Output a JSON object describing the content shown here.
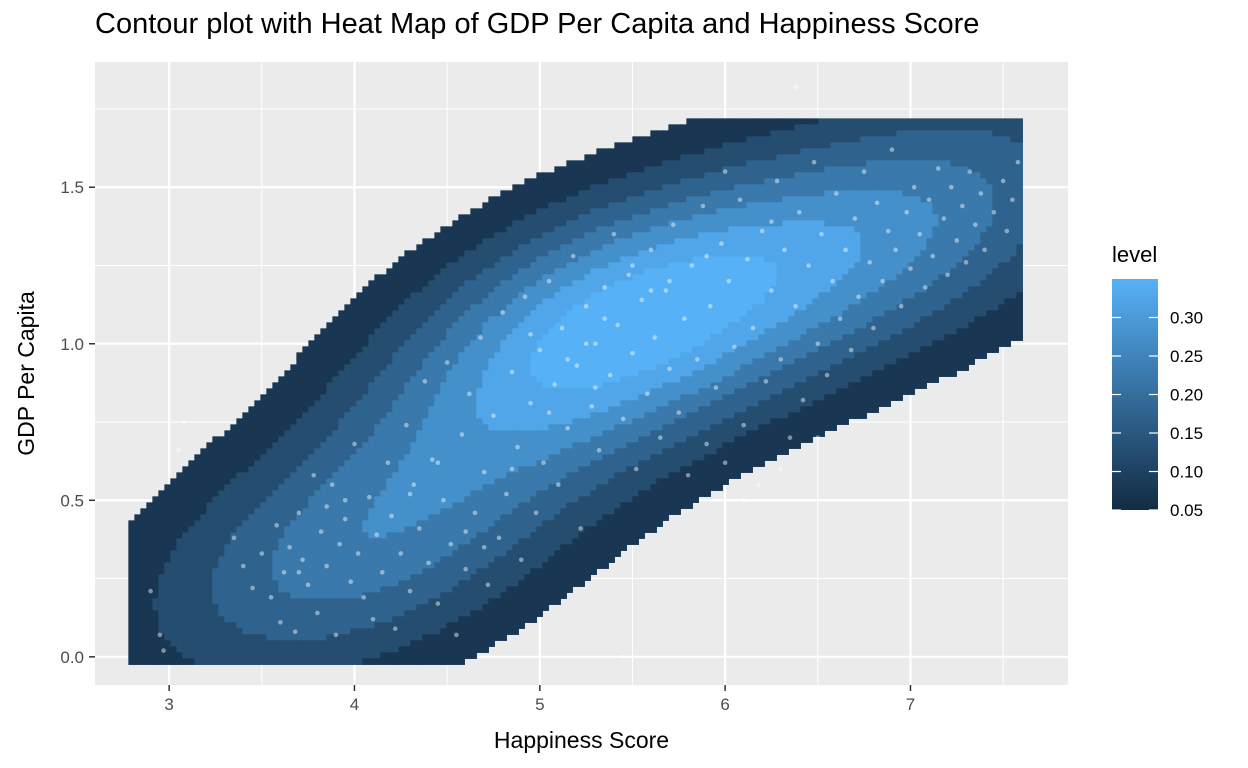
{
  "chart_data": {
    "type": "heatmap",
    "title": "Contour plot with Heat Map of GDP Per Capita and Happiness Score",
    "xlabel": "Happiness Score",
    "ylabel": "GDP Per Capita",
    "xlim": [
      2.6,
      7.85
    ],
    "ylim": [
      -0.09,
      1.9
    ],
    "x_ticks": [
      3,
      4,
      5,
      6,
      7
    ],
    "y_ticks": [
      0.0,
      0.5,
      1.0,
      1.5
    ],
    "x_tick_labels": [
      "3",
      "4",
      "5",
      "6",
      "7"
    ],
    "y_tick_labels": [
      "0.0",
      "0.5",
      "1.0",
      "1.5"
    ],
    "grid": true,
    "legend": {
      "title": "level",
      "placement": "right",
      "range": [
        0.05,
        0.35
      ],
      "ticks": [
        0.05,
        0.1,
        0.15,
        0.2,
        0.25,
        0.3
      ],
      "tick_labels": [
        "0.05",
        "0.10",
        "0.15",
        "0.20",
        "0.25",
        "0.30"
      ],
      "color_low": "#132B43",
      "color_high": "#56B1F7"
    },
    "density_peaks": [
      {
        "x": 5.4,
        "y": 1.05,
        "level": 0.35
      },
      {
        "x": 4.0,
        "y": 0.34,
        "level": 0.22
      },
      {
        "x": 7.0,
        "y": 1.38,
        "level": 0.21
      }
    ],
    "contour_levels": [
      0.05,
      0.1,
      0.15,
      0.2,
      0.25,
      0.3,
      0.35
    ],
    "points": [
      [
        2.9,
        0.21
      ],
      [
        2.95,
        0.07
      ],
      [
        2.97,
        0.02
      ],
      [
        3.05,
        0.66
      ],
      [
        3.08,
        0.75
      ],
      [
        3.35,
        0.38
      ],
      [
        3.4,
        0.29
      ],
      [
        3.45,
        0.22
      ],
      [
        3.5,
        0.33
      ],
      [
        3.55,
        0.19
      ],
      [
        3.58,
        0.42
      ],
      [
        3.6,
        0.11
      ],
      [
        3.62,
        0.27
      ],
      [
        3.65,
        0.35
      ],
      [
        3.68,
        0.08
      ],
      [
        3.7,
        0.46
      ],
      [
        3.72,
        0.31
      ],
      [
        3.75,
        0.23
      ],
      [
        3.78,
        0.58
      ],
      [
        3.8,
        0.14
      ],
      [
        3.82,
        0.4
      ],
      [
        3.85,
        0.29
      ],
      [
        3.88,
        0.55
      ],
      [
        3.9,
        0.07
      ],
      [
        3.92,
        0.36
      ],
      [
        3.95,
        0.44
      ],
      [
        3.98,
        0.24
      ],
      [
        4.0,
        0.68
      ],
      [
        4.02,
        0.33
      ],
      [
        4.05,
        0.19
      ],
      [
        4.08,
        0.51
      ],
      [
        4.1,
        0.12
      ],
      [
        4.12,
        0.39
      ],
      [
        4.15,
        0.27
      ],
      [
        4.18,
        0.62
      ],
      [
        4.2,
        0.45
      ],
      [
        4.22,
        0.09
      ],
      [
        4.25,
        0.33
      ],
      [
        4.28,
        0.74
      ],
      [
        4.3,
        0.21
      ],
      [
        4.32,
        0.55
      ],
      [
        4.35,
        0.41
      ],
      [
        4.38,
        0.88
      ],
      [
        4.4,
        0.3
      ],
      [
        4.42,
        0.63
      ],
      [
        4.45,
        0.17
      ],
      [
        4.48,
        0.5
      ],
      [
        4.5,
        0.94
      ],
      [
        4.52,
        0.36
      ],
      [
        4.55,
        0.07
      ],
      [
        4.58,
        0.71
      ],
      [
        4.6,
        0.28
      ],
      [
        4.62,
        0.84
      ],
      [
        4.65,
        0.46
      ],
      [
        4.68,
        1.02
      ],
      [
        4.7,
        0.59
      ],
      [
        4.72,
        0.23
      ],
      [
        4.75,
        0.77
      ],
      [
        4.78,
        0.38
      ],
      [
        4.8,
        1.1
      ],
      [
        4.82,
        0.52
      ],
      [
        4.85,
        0.91
      ],
      [
        4.88,
        0.67
      ],
      [
        4.9,
        0.31
      ],
      [
        4.92,
        1.15
      ],
      [
        4.95,
        0.81
      ],
      [
        4.98,
        0.46
      ],
      [
        5.0,
        0.98
      ],
      [
        5.02,
        0.62
      ],
      [
        5.05,
        1.2
      ],
      [
        5.08,
        0.87
      ],
      [
        5.1,
        0.55
      ],
      [
        5.12,
        1.05
      ],
      [
        5.15,
        0.73
      ],
      [
        5.18,
        1.28
      ],
      [
        5.2,
        0.93
      ],
      [
        5.22,
        0.41
      ],
      [
        5.25,
        1.12
      ],
      [
        5.28,
        0.8
      ],
      [
        5.3,
        1.0
      ],
      [
        5.32,
        0.66
      ],
      [
        5.35,
        1.18
      ],
      [
        5.38,
        0.9
      ],
      [
        5.4,
        1.35
      ],
      [
        5.42,
        1.06
      ],
      [
        5.45,
        0.76
      ],
      [
        5.48,
        1.22
      ],
      [
        5.5,
        0.97
      ],
      [
        5.52,
        0.6
      ],
      [
        5.55,
        1.14
      ],
      [
        5.58,
        0.84
      ],
      [
        5.6,
        1.3
      ],
      [
        5.62,
        1.02
      ],
      [
        5.65,
        0.7
      ],
      [
        5.68,
        1.17
      ],
      [
        5.7,
        0.92
      ],
      [
        5.72,
        1.38
      ],
      [
        5.75,
        0.78
      ],
      [
        5.78,
        1.08
      ],
      [
        5.8,
        0.58
      ],
      [
        5.82,
        1.25
      ],
      [
        5.85,
        0.95
      ],
      [
        5.88,
        1.44
      ],
      [
        5.9,
        0.68
      ],
      [
        5.92,
        1.12
      ],
      [
        5.95,
        0.86
      ],
      [
        5.98,
        1.32
      ],
      [
        6.0,
        0.62
      ],
      [
        6.02,
        1.2
      ],
      [
        6.05,
        0.99
      ],
      [
        6.08,
        1.46
      ],
      [
        6.1,
        0.74
      ],
      [
        6.12,
        1.27
      ],
      [
        6.15,
        1.05
      ],
      [
        6.18,
        0.55
      ],
      [
        6.2,
        1.36
      ],
      [
        6.22,
        0.88
      ],
      [
        6.25,
        1.17
      ],
      [
        6.28,
        1.52
      ],
      [
        6.3,
        0.95
      ],
      [
        6.32,
        1.3
      ],
      [
        6.35,
        0.7
      ],
      [
        6.38,
        1.12
      ],
      [
        6.4,
        1.42
      ],
      [
        6.42,
        0.82
      ],
      [
        6.45,
        1.25
      ],
      [
        6.48,
        1.58
      ],
      [
        6.5,
        1.0
      ],
      [
        6.52,
        1.35
      ],
      [
        6.55,
        0.9
      ],
      [
        6.58,
        1.2
      ],
      [
        6.6,
        1.48
      ],
      [
        6.62,
        1.08
      ],
      [
        6.65,
        1.3
      ],
      [
        6.68,
        0.98
      ],
      [
        6.7,
        1.4
      ],
      [
        6.72,
        1.15
      ],
      [
        6.75,
        1.55
      ],
      [
        6.78,
        1.26
      ],
      [
        6.8,
        1.05
      ],
      [
        6.82,
        1.45
      ],
      [
        6.85,
        1.2
      ],
      [
        6.88,
        1.36
      ],
      [
        6.9,
        1.62
      ],
      [
        6.92,
        1.3
      ],
      [
        6.95,
        1.12
      ],
      [
        6.98,
        1.42
      ],
      [
        7.0,
        1.24
      ],
      [
        7.02,
        1.5
      ],
      [
        7.05,
        1.35
      ],
      [
        7.08,
        1.18
      ],
      [
        7.1,
        1.46
      ],
      [
        7.12,
        1.28
      ],
      [
        7.15,
        1.56
      ],
      [
        7.18,
        1.4
      ],
      [
        7.2,
        1.22
      ],
      [
        7.22,
        1.5
      ],
      [
        7.25,
        1.33
      ],
      [
        7.28,
        1.44
      ],
      [
        7.3,
        1.26
      ],
      [
        7.32,
        1.55
      ],
      [
        7.35,
        1.38
      ],
      [
        7.38,
        1.48
      ],
      [
        7.4,
        1.3
      ],
      [
        7.45,
        1.42
      ],
      [
        7.5,
        1.52
      ],
      [
        7.52,
        1.36
      ],
      [
        7.55,
        1.46
      ],
      [
        7.58,
        1.58
      ],
      [
        6.38,
        1.82
      ],
      [
        5.45,
        0.0
      ],
      [
        6.0,
        1.55
      ],
      [
        5.6,
        1.17
      ],
      [
        5.35,
        1.08
      ],
      [
        5.15,
        0.95
      ],
      [
        5.5,
        1.25
      ],
      [
        4.95,
        1.03
      ],
      [
        5.7,
        1.2
      ],
      [
        5.25,
        1.0
      ],
      [
        4.6,
        0.4
      ],
      [
        4.3,
        0.52
      ],
      [
        3.95,
        0.5
      ],
      [
        4.7,
        0.35
      ],
      [
        4.85,
        0.6
      ],
      [
        5.05,
        0.78
      ],
      [
        5.3,
        0.86
      ],
      [
        6.3,
        0.6
      ],
      [
        6.1,
        0.5
      ],
      [
        6.5,
        0.7
      ],
      [
        4.45,
        0.62
      ],
      [
        5.9,
        1.28
      ],
      [
        6.25,
        1.39
      ],
      [
        3.7,
        0.27
      ],
      [
        3.85,
        0.48
      ]
    ]
  }
}
